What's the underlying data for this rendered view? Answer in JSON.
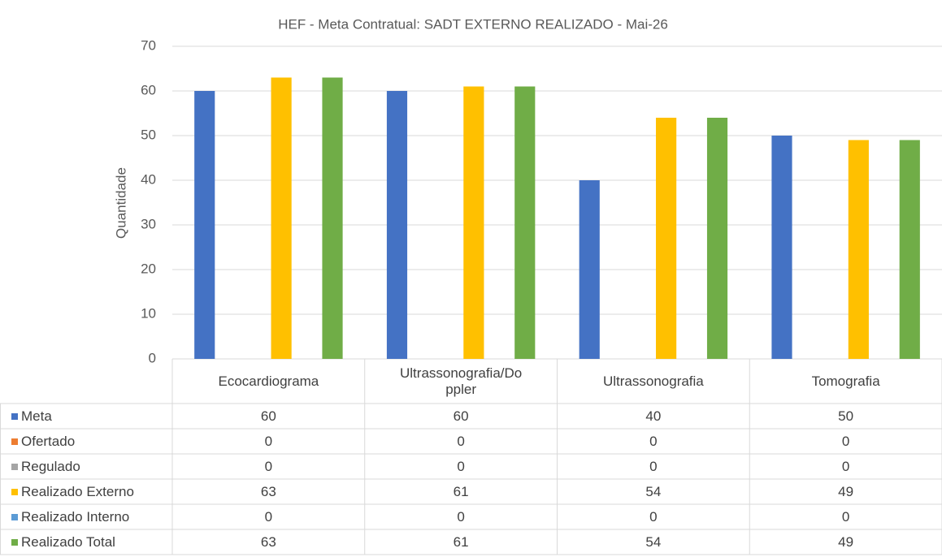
{
  "chart_data": {
    "type": "bar",
    "title": "HEF - Meta Contratual: SADT EXTERNO REALIZADO - Mai-26",
    "y_label": "Quantidade",
    "categories": [
      "Ecocardiograma",
      "Ultrassonografia/Doppler",
      "Ultrassonografia",
      "Tomografia"
    ],
    "series": [
      {
        "name": "Meta",
        "color": "#4472c4",
        "values": [
          60,
          60,
          40,
          50
        ]
      },
      {
        "name": "Ofertado",
        "color": "#ed7d31",
        "values": [
          0,
          0,
          0,
          0
        ]
      },
      {
        "name": "Regulado",
        "color": "#a5a5a5",
        "values": [
          0,
          0,
          0,
          0
        ]
      },
      {
        "name": "Realizado Externo",
        "color": "#ffc000",
        "values": [
          63,
          61,
          54,
          49
        ]
      },
      {
        "name": "Realizado Interno",
        "color": "#5b9bd5",
        "values": [
          0,
          0,
          0,
          0
        ]
      },
      {
        "name": "Realizado Total",
        "color": "#70ad47",
        "values": [
          63,
          61,
          54,
          49
        ]
      }
    ],
    "ylim": [
      0,
      70
    ],
    "yticks": [
      0,
      10,
      20,
      30,
      40,
      50,
      60,
      70
    ],
    "grid": true
  }
}
